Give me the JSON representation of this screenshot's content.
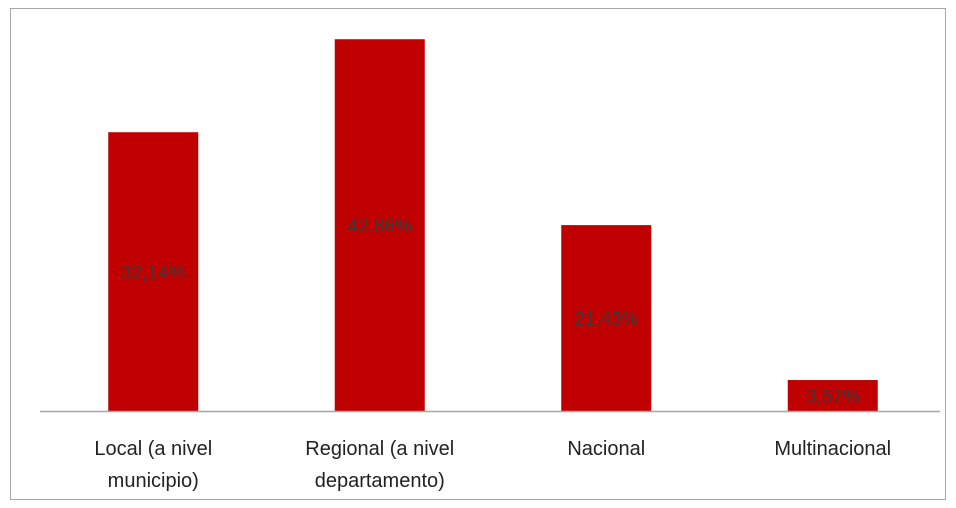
{
  "chart_data": {
    "type": "bar",
    "categories": [
      [
        "Local (a nivel",
        "municipio)"
      ],
      [
        "Regional (a nivel",
        "departamento)"
      ],
      [
        "Nacional"
      ],
      [
        "Multinacional"
      ]
    ],
    "values": [
      32.14,
      42.86,
      21.43,
      3.57
    ],
    "data_labels": [
      "32,14%",
      "42,86%",
      "21,43%",
      "3,57%"
    ],
    "title": "",
    "xlabel": "",
    "ylabel": "",
    "ylim": [
      0,
      46
    ],
    "bar_color": "#c00000",
    "axis_color": "#a6a6a6",
    "grid": false,
    "legend": "none"
  }
}
